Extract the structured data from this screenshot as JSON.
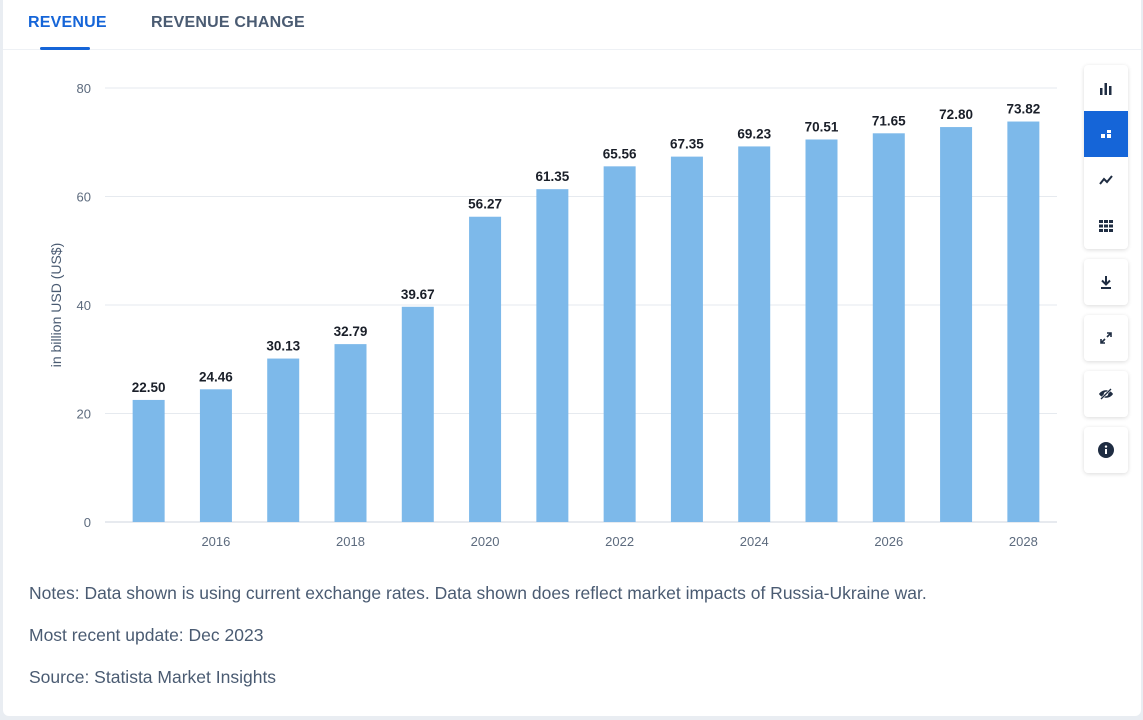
{
  "tabs": [
    {
      "label": "REVENUE",
      "active": true
    },
    {
      "label": "REVENUE CHANGE",
      "active": false
    }
  ],
  "chart_data": {
    "type": "bar",
    "categories": [
      "2015",
      "2016",
      "2017",
      "2018",
      "2019",
      "2020",
      "2021",
      "2022",
      "2023",
      "2024",
      "2025",
      "2026",
      "2027",
      "2028"
    ],
    "x_tick_labels": [
      "",
      "2016",
      "",
      "2018",
      "",
      "2020",
      "",
      "2022",
      "",
      "2024",
      "",
      "2026",
      "",
      "2028"
    ],
    "values": [
      22.5,
      24.46,
      30.13,
      32.79,
      39.67,
      56.27,
      61.35,
      65.56,
      67.35,
      69.23,
      70.51,
      71.65,
      72.8,
      73.82
    ],
    "data_labels": [
      "22.50",
      "24.46",
      "30.13",
      "32.79",
      "39.67",
      "56.27",
      "61.35",
      "65.56",
      "67.35",
      "69.23",
      "70.51",
      "71.65",
      "72.80",
      "73.82"
    ],
    "title": "",
    "xlabel": "",
    "ylabel": "in billion USD (US$)",
    "ylim": [
      0,
      80
    ],
    "yticks": [
      0,
      20,
      40,
      60,
      80
    ],
    "grid": true,
    "bar_color": "#7db9ea"
  },
  "toolbar": {
    "icons": [
      "bar-chart-icon",
      "stacked-bar-icon",
      "line-chart-icon",
      "table-icon",
      "download-icon",
      "expand-icon",
      "hide-icon",
      "info-icon"
    ],
    "active": "stacked-bar-icon"
  },
  "notes": {
    "notes": "Notes: Data shown is using current exchange rates. Data shown does reflect market impacts of Russia-Ukraine war.",
    "update": "Most recent update: Dec 2023",
    "source": "Source: Statista Market Insights"
  }
}
